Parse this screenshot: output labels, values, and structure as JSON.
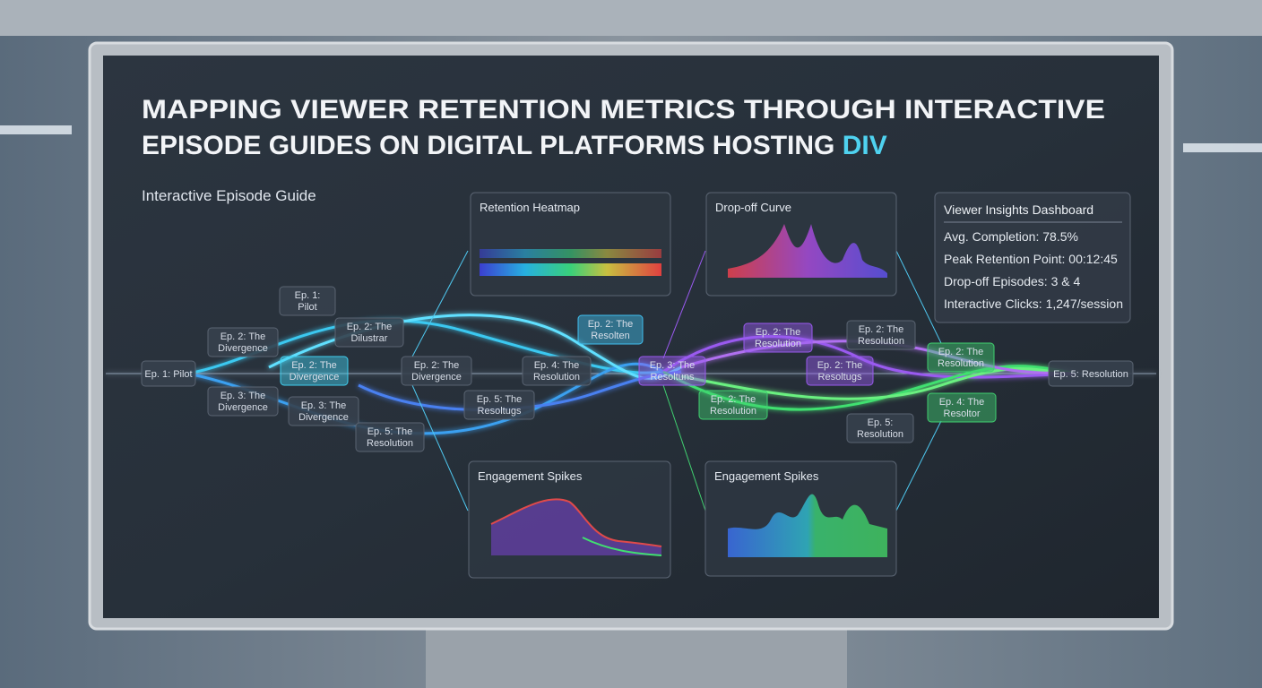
{
  "header": {
    "title_lines": [
      "MAPPING VIEWER RETENTION METRICS THROUGH INTERACTIVE",
      "EPISODE GUIDES ON DIGITAL PLATFORMS HOSTING "
    ],
    "title_highlight": "DIV",
    "subtitle": "Interactive Episode Guide"
  },
  "nodes": [
    {
      "lines": [
        "Ep. 1: Pilot"
      ]
    },
    {
      "lines": [
        "Ep. 1:",
        "Pilot"
      ]
    },
    {
      "lines": [
        "Ep. 2: The",
        "Divergence"
      ]
    },
    {
      "lines": [
        "Ep. 3: The",
        "Divergence"
      ]
    },
    {
      "lines": [
        "Ep. 2: The",
        "Divergence"
      ]
    },
    {
      "lines": [
        "Ep. 2: The",
        "Dilustrar"
      ]
    },
    {
      "lines": [
        "Ep. 3: The",
        "Divergence"
      ]
    },
    {
      "lines": [
        "Ep. 5: The",
        "Resolution"
      ]
    },
    {
      "lines": [
        "Ep. 2: The",
        "Divergence"
      ]
    },
    {
      "lines": [
        "Ep. 5: The",
        "Resoltugs"
      ]
    },
    {
      "lines": [
        "Ep. 4: The",
        "Resolution"
      ]
    },
    {
      "lines": [
        "Ep. 2: The",
        "Resolten"
      ]
    },
    {
      "lines": [
        "Ep. 3: The",
        "Resoltuns"
      ]
    },
    {
      "lines": [
        "Ep. 2: The",
        "Resolution"
      ]
    },
    {
      "lines": [
        "Ep. 2: The",
        "Resolution"
      ]
    },
    {
      "lines": [
        "Ep. 2: The",
        "Resoltugs"
      ]
    },
    {
      "lines": [
        "Ep. 2: The",
        "Resolution"
      ]
    },
    {
      "lines": [
        "Ep. 5:",
        "Resolution"
      ]
    },
    {
      "lines": [
        "Ep. 2: The",
        "Resolution"
      ]
    },
    {
      "lines": [
        "Ep. 4: The",
        "Resoltor"
      ]
    },
    {
      "lines": [
        "Ep. 5: Resolution"
      ]
    }
  ],
  "panels": [
    {
      "title": "Retention Heatmap"
    },
    {
      "title": "Drop-off Curve"
    },
    {
      "title": "Engagement Spikes"
    },
    {
      "title": "Engagement Spikes"
    }
  ],
  "dashboard": {
    "title": "Viewer Insights Dashboard",
    "items": [
      "Avg. Completion: 78.5%",
      "Peak Retention Point: 00:12:45",
      "Drop-off Episodes: 3 & 4",
      "Interactive Clicks: 1,247/session"
    ]
  }
}
